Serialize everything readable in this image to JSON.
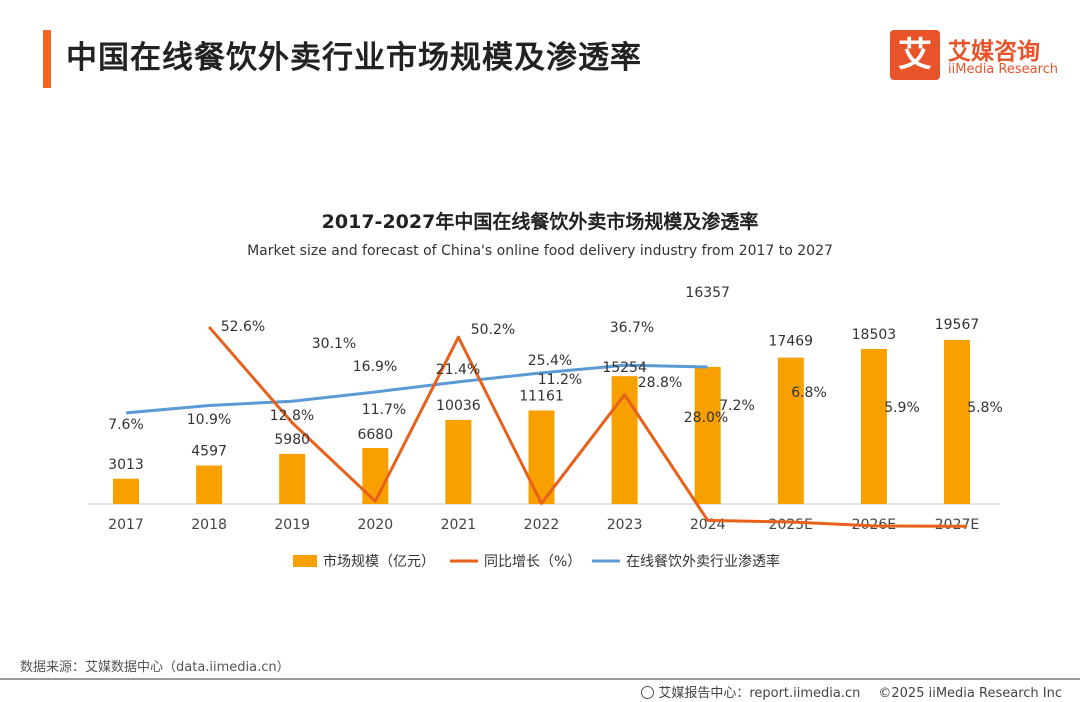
{
  "header": {
    "title": "中国在线餐饮外卖行业市场规模及渗透率",
    "logo_mark": "艾",
    "logo_cn": "艾媒咨询",
    "logo_en": "iiMedia Research"
  },
  "chart_data": {
    "type": "bar",
    "title": "2017-2027年中国在线餐饮外卖市场规模及渗透率",
    "subtitle": "Market size and forecast of China's online food delivery industry from 2017 to 2027",
    "categories": [
      "2017",
      "2018",
      "2019",
      "2020",
      "2021",
      "2022",
      "2023",
      "2024",
      "2025E",
      "2026E",
      "2027E"
    ],
    "series": [
      {
        "name": "市场规模（亿元）",
        "type": "bar",
        "color": "#f7a000",
        "values": [
          3013,
          4597,
          5980,
          6680,
          10036,
          11161,
          15254,
          16357,
          17469,
          18503,
          19567
        ],
        "labels": [
          "3013",
          "4597",
          "5980",
          "6680",
          "10036",
          "11161",
          "15254",
          "16357",
          "17469",
          "18503",
          "19567"
        ]
      },
      {
        "name": "同比增长（%）",
        "type": "line",
        "color": "#e8611a",
        "values": [
          null,
          52.6,
          30.1,
          11.7,
          50.2,
          11.2,
          36.7,
          7.2,
          6.8,
          5.9,
          5.8
        ],
        "labels": [
          "",
          "52.6%",
          "30.1%",
          "11.7%",
          "50.2%",
          "11.2%",
          "36.7%",
          "7.2%",
          "6.8%",
          "5.9%",
          "5.8%"
        ]
      },
      {
        "name": "在线餐饮外卖行业渗透率",
        "type": "line",
        "color": "#5b9bd5",
        "values": [
          7.6,
          10.9,
          12.8,
          16.9,
          21.4,
          25.4,
          28.8,
          28.0,
          null,
          null,
          null
        ],
        "labels": [
          "7.6%",
          "10.9%",
          "12.8%",
          "16.9%",
          "21.4%",
          "25.4%",
          "28.8%",
          "28.0%",
          "",
          "",
          ""
        ]
      }
    ],
    "legend_position": "bottom",
    "grid": false
  },
  "footer": {
    "source": "数据来源：艾媒数据中心（data.iimedia.cn）",
    "report_center": "艾媒报告中心：report.iimedia.cn",
    "copyright": "©2025  iiMedia Research  Inc"
  }
}
